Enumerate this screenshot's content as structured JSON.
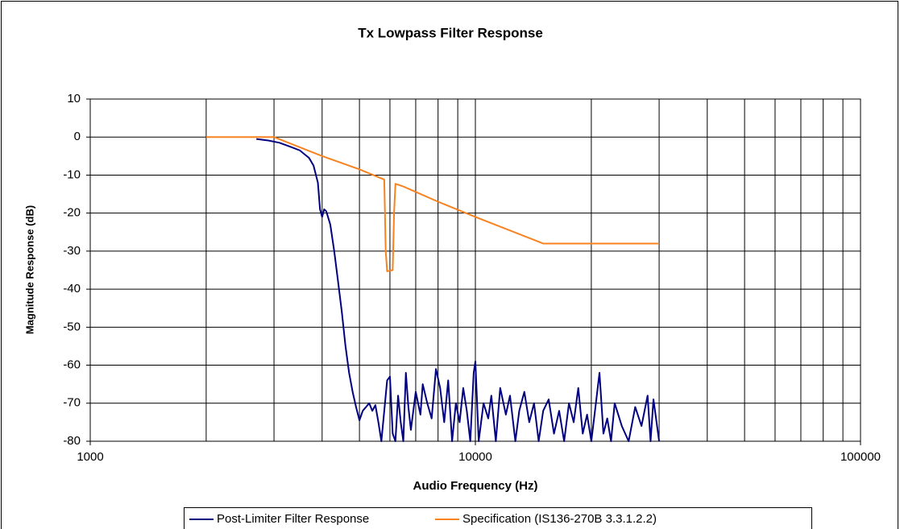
{
  "chart_data": {
    "type": "line",
    "title": "Tx Lowpass Filter Response",
    "x_label": "Audio Frequency (Hz)",
    "y_label": "Magnitude Response (dB)",
    "xlim": [
      1000,
      100000
    ],
    "xticks": [
      1000,
      10000,
      100000
    ],
    "x_log": true,
    "x_minor_grid": true,
    "ylim": [
      -80,
      10
    ],
    "yticks": [
      10,
      0,
      -10,
      -20,
      -30,
      -40,
      -50,
      -60,
      -70,
      -80
    ],
    "grid": true,
    "legend": "bottom",
    "series": [
      {
        "name": "Post-Limiter Filter Response",
        "color": "#000080",
        "x": [
          2700,
          2900,
          3100,
          3300,
          3500,
          3700,
          3800,
          3900,
          3950,
          4000,
          4050,
          4100,
          4200,
          4300,
          4400,
          4500,
          4600,
          4700,
          4800,
          4900,
          5000,
          5100,
          5200,
          5300,
          5400,
          5500,
          5600,
          5700,
          5800,
          5900,
          6000,
          6100,
          6200,
          6300,
          6400,
          6500,
          6600,
          6700,
          6800,
          6900,
          7000,
          7200,
          7300,
          7500,
          7700,
          7900,
          8100,
          8300,
          8500,
          8700,
          8900,
          9100,
          9300,
          9500,
          9700,
          9900,
          10000,
          10200,
          10500,
          10800,
          11000,
          11300,
          11600,
          12000,
          12300,
          12700,
          13000,
          13400,
          13800,
          14200,
          14600,
          15000,
          15500,
          16000,
          16500,
          17000,
          17500,
          18000,
          18500,
          19000,
          19500,
          20000,
          20500,
          21000,
          21500,
          22000,
          22500,
          23000,
          24000,
          25000,
          26000,
          27000,
          28000,
          28500,
          29000,
          30000
        ],
        "values": [
          -0.5,
          -0.9,
          -1.5,
          -2.5,
          -3.5,
          -5.5,
          -7.5,
          -12,
          -19,
          -21,
          -19,
          -19.5,
          -23,
          -30,
          -38,
          -46,
          -55,
          -62,
          -67,
          -71,
          -74.5,
          -72,
          -71,
          -70,
          -72,
          -70.5,
          -75,
          -80,
          -72,
          -64,
          -63,
          -78,
          -80,
          -68,
          -75,
          -80,
          -62,
          -71,
          -77,
          -72,
          -67,
          -73,
          -65,
          -70,
          -74,
          -61,
          -66,
          -75,
          -64,
          -80,
          -70,
          -75,
          -66,
          -72,
          -80,
          -62,
          -59,
          -80,
          -70,
          -74,
          -68,
          -80,
          -66,
          -73,
          -68,
          -80,
          -72,
          -67,
          -75,
          -70,
          -80,
          -72,
          -69,
          -78,
          -72,
          -80,
          -70,
          -75,
          -66,
          -78,
          -73,
          -80,
          -71,
          -62,
          -78,
          -74,
          -80,
          -70,
          -76,
          -80,
          -71,
          -76,
          -68,
          -80,
          -69,
          -80
        ]
      },
      {
        "name": "Specification (IS136-270B 3.3.1.2.2)",
        "color": "#f7821f",
        "x": [
          2000,
          3000,
          4000,
          5000,
          5800,
          5850,
          5900,
          6100,
          6150,
          6200,
          6500,
          8000,
          10000,
          15000,
          30000
        ],
        "values": [
          0,
          0,
          -5,
          -8.5,
          -11.2,
          -30,
          -35.3,
          -35,
          -20,
          -12.3,
          -13,
          -17,
          -21,
          -28,
          -28
        ]
      }
    ]
  }
}
